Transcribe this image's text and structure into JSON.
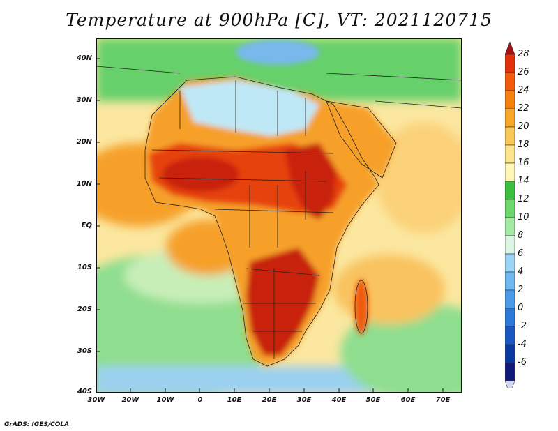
{
  "title": "Temperature at 900hPa [C], VT: 2021120715",
  "credit": "GrADS: IGES/COLA",
  "lat_labels": [
    "40N",
    "30N",
    "20N",
    "10N",
    "EQ",
    "10S",
    "20S",
    "30S",
    "40S"
  ],
  "lon_labels": [
    "30W",
    "20W",
    "10W",
    "0",
    "10E",
    "20E",
    "30E",
    "40E",
    "50E",
    "60E",
    "70E"
  ],
  "colorbar": {
    "labels": [
      "28",
      "26",
      "24",
      "22",
      "20",
      "18",
      "16",
      "14",
      "12",
      "10",
      "8",
      "6",
      "4",
      "2",
      "0",
      "-2",
      "-4",
      "-6"
    ],
    "colors_top_to_bottom": [
      "#a50f15",
      "#e0300c",
      "#f25a0c",
      "#f5820f",
      "#f7a82a",
      "#fac858",
      "#fbe48c",
      "#fef7b5",
      "#3cbf3c",
      "#6cd86c",
      "#a3eaa3",
      "#dcf5e4",
      "#9bd5f5",
      "#6fb9f2",
      "#4a9ce8",
      "#2b78d8",
      "#1657c0",
      "#0a37a0",
      "#101a78"
    ],
    "under_color": "#d4d8f5"
  },
  "map_colors": {
    "ocean_south": "#b9e8c0",
    "ocean_far_south": "#9bd0f0",
    "ocean_east": "#fbe7a0",
    "ocean_west_tropical": "#f9c35f",
    "ocean_gulf": "#f6a02a",
    "sahara_north": "#bfe8f6",
    "mediterranean": "#78b8ec",
    "north_green": "#66d06a",
    "land_hot": "#e6420e",
    "land_very_hot": "#c8200c",
    "madagascar_hot": "#ef5a10",
    "boundary_line": "#222222"
  }
}
